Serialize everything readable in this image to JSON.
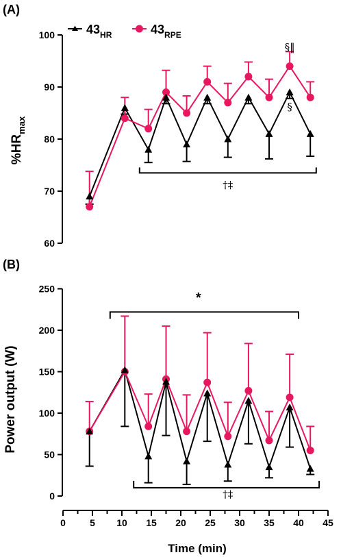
{
  "colors": {
    "hr": "#000000",
    "rpe": "#e8185f"
  },
  "chart_data": [
    {
      "panel_label": "(A)",
      "type": "line",
      "ylabel": "%HR",
      "ylabel_sub": "max",
      "xlabel": "",
      "ylim": [
        60,
        100
      ],
      "yticks": [
        "60",
        "70",
        "80",
        "90",
        "100"
      ],
      "legend": {
        "placement": "top-left",
        "entries": [
          {
            "base": "43",
            "sub": "HR",
            "marker": "triangle"
          },
          {
            "base": "43",
            "sub": "RPE",
            "marker": "circle"
          }
        ]
      },
      "series": [
        {
          "name": "43HR",
          "marker": "triangle",
          "error_direction": "down",
          "x": [
            4.5,
            10.5,
            14.5,
            17.5,
            21,
            24.5,
            28,
            31.5,
            35,
            38.5,
            42
          ],
          "y": [
            69,
            86,
            78,
            88,
            79,
            88,
            80,
            88,
            81,
            89,
            81
          ],
          "err": [
            1.5,
            1.2,
            2.5,
            1.2,
            3.3,
            1.2,
            3.5,
            1.2,
            4.8,
            1.2,
            4.3
          ]
        },
        {
          "name": "43RPE",
          "marker": "circle",
          "error_direction": "up",
          "x": [
            4.5,
            10.5,
            14.5,
            17.5,
            21,
            24.5,
            28,
            31.5,
            35,
            38.5,
            42
          ],
          "y": [
            67,
            84,
            82,
            89,
            85,
            91,
            87,
            92,
            88,
            94,
            88
          ],
          "err": [
            6.8,
            4,
            3.7,
            4.2,
            3.3,
            3,
            3.7,
            2.8,
            3.5,
            2.8,
            3
          ]
        }
      ],
      "annotations": [
        {
          "text": "§‖",
          "x": 38.5,
          "y": 97
        },
        {
          "text": "§",
          "x": 38.5,
          "y": 85.5
        },
        {
          "text": "†‡",
          "x": 28,
          "y": 70.5
        }
      ],
      "bracket": {
        "x_from": 13,
        "x_to": 43,
        "y": 73.5,
        "tick_direction": "up"
      }
    },
    {
      "panel_label": "(B)",
      "type": "line",
      "ylabel": "Power output (W)",
      "xlabel": "Time (min)",
      "xlim": [
        0,
        45
      ],
      "xticks": [
        "0",
        "5",
        "10",
        "15",
        "20",
        "25",
        "30",
        "35",
        "40",
        "45"
      ],
      "ylim": [
        0,
        250
      ],
      "yticks": [
        "0",
        "50",
        "100",
        "150",
        "200",
        "250"
      ],
      "series": [
        {
          "name": "43HR",
          "marker": "triangle",
          "error_direction": "down",
          "x": [
            4.5,
            10.5,
            14.5,
            17.5,
            21,
            24.5,
            28,
            31.5,
            35,
            38.5,
            42
          ],
          "y": [
            78,
            152,
            48,
            138,
            42,
            124,
            38,
            115,
            35,
            107,
            33
          ],
          "err": [
            42,
            68,
            32,
            65,
            28,
            58,
            20,
            52,
            13,
            48,
            7
          ]
        },
        {
          "name": "43RPE",
          "marker": "circle",
          "error_direction": "up",
          "x": [
            4.5,
            10.5,
            14.5,
            17.5,
            21,
            24.5,
            28,
            31.5,
            35,
            38.5,
            42
          ],
          "y": [
            78,
            150,
            84,
            141,
            78,
            137,
            72,
            127,
            67,
            119,
            55
          ],
          "err": [
            36,
            67,
            39,
            64,
            44,
            60,
            41,
            57,
            35,
            52,
            29
          ]
        }
      ],
      "annotations": [
        {
          "text": "*",
          "x": 23,
          "y": 234
        },
        {
          "text": "†‡",
          "x": 28,
          "y": -2
        }
      ],
      "brackets": [
        {
          "x_from": 8,
          "x_to": 40,
          "y": 222,
          "tick_direction": "down"
        },
        {
          "x_from": 12,
          "x_to": 43.5,
          "y": 10,
          "tick_direction": "up"
        }
      ]
    }
  ]
}
